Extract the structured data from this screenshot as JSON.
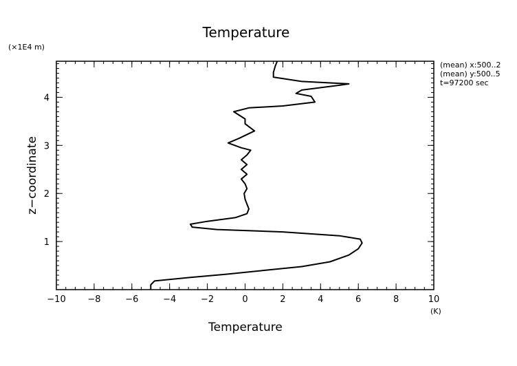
{
  "chart_data": {
    "type": "line",
    "title": "Temperature",
    "xlabel": "Temperature",
    "ylabel": "z−coordinate",
    "x_units": "(K)",
    "y_units": "(×1E4 m)",
    "xlim": [
      -10,
      10
    ],
    "ylim": [
      0,
      4.75
    ],
    "x_ticks": [
      -10,
      -8,
      -6,
      -4,
      -2,
      0,
      2,
      4,
      6,
      8,
      10
    ],
    "x_tick_labels": [
      "−10",
      "−8",
      "−6",
      "−4",
      "−2",
      "0",
      "2",
      "4",
      "6",
      "8",
      "10"
    ],
    "y_ticks": [
      1,
      2,
      3,
      4
    ],
    "y_tick_labels": [
      "1",
      "2",
      "3",
      "4"
    ],
    "x_minor_step": 0.5,
    "y_minor_step": 0.1,
    "annotations": [
      "(mean) x:500..2",
      "(mean) y:500..5",
      "t=97200 sec"
    ],
    "series": [
      {
        "points": [
          [
            -5.0,
            0.0
          ],
          [
            -5.0,
            0.1
          ],
          [
            -4.8,
            0.18
          ],
          [
            -3.0,
            0.25
          ],
          [
            -1.0,
            0.32
          ],
          [
            1.0,
            0.4
          ],
          [
            3.0,
            0.48
          ],
          [
            4.5,
            0.58
          ],
          [
            5.5,
            0.72
          ],
          [
            6.0,
            0.85
          ],
          [
            6.2,
            0.97
          ],
          [
            6.1,
            1.05
          ],
          [
            5.0,
            1.12
          ],
          [
            2.0,
            1.2
          ],
          [
            -1.5,
            1.25
          ],
          [
            -2.8,
            1.3
          ],
          [
            -2.9,
            1.36
          ],
          [
            -2.0,
            1.42
          ],
          [
            -0.5,
            1.5
          ],
          [
            0.1,
            1.58
          ],
          [
            0.2,
            1.68
          ],
          [
            0.1,
            1.78
          ],
          [
            0.0,
            1.88
          ],
          [
            -0.05,
            2.0
          ],
          [
            0.1,
            2.1
          ],
          [
            0.0,
            2.2
          ],
          [
            -0.2,
            2.3
          ],
          [
            0.1,
            2.4
          ],
          [
            -0.2,
            2.5
          ],
          [
            0.1,
            2.6
          ],
          [
            -0.2,
            2.7
          ],
          [
            0.1,
            2.8
          ],
          [
            0.3,
            2.9
          ],
          [
            -0.2,
            2.95
          ],
          [
            -0.9,
            3.05
          ],
          [
            -0.3,
            3.15
          ],
          [
            0.5,
            3.3
          ],
          [
            0.0,
            3.45
          ],
          [
            0.0,
            3.55
          ],
          [
            -0.6,
            3.7
          ],
          [
            0.2,
            3.78
          ],
          [
            2.0,
            3.82
          ],
          [
            3.7,
            3.9
          ],
          [
            3.5,
            4.02
          ],
          [
            2.7,
            4.08
          ],
          [
            3.0,
            4.15
          ],
          [
            5.0,
            4.25
          ],
          [
            5.5,
            4.28
          ],
          [
            3.0,
            4.33
          ],
          [
            1.5,
            4.42
          ],
          [
            1.5,
            4.52
          ],
          [
            1.6,
            4.65
          ],
          [
            1.7,
            4.75
          ]
        ]
      }
    ]
  }
}
